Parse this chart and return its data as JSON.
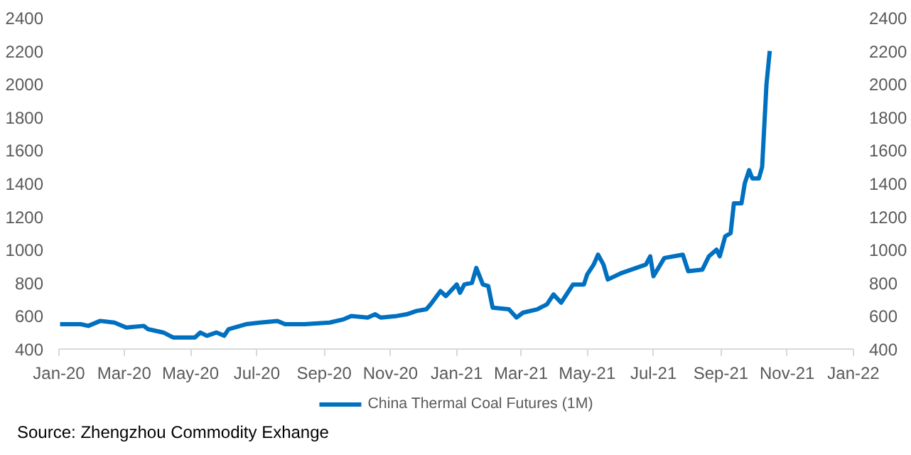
{
  "chart_data": {
    "type": "line",
    "x": [
      "2020-01-02",
      "2020-01-21",
      "2020-01-28",
      "2020-02-08",
      "2020-02-21",
      "2020-03-03",
      "2020-03-19",
      "2020-03-23",
      "2020-04-06",
      "2020-04-15",
      "2020-05-05",
      "2020-05-10",
      "2020-05-16",
      "2020-05-25",
      "2020-06-01",
      "2020-06-05",
      "2020-06-21",
      "2020-07-04",
      "2020-07-20",
      "2020-07-27",
      "2020-08-14",
      "2020-09-06",
      "2020-09-19",
      "2020-09-26",
      "2020-10-11",
      "2020-10-18",
      "2020-10-23",
      "2020-11-07",
      "2020-11-16",
      "2020-11-25",
      "2020-12-04",
      "2020-12-08",
      "2020-12-17",
      "2020-12-22",
      "2021-01-01",
      "2021-01-04",
      "2021-01-08",
      "2021-01-15",
      "2021-01-19",
      "2021-01-25",
      "2021-01-30",
      "2021-02-03",
      "2021-02-18",
      "2021-02-25",
      "2021-03-03",
      "2021-03-16",
      "2021-03-25",
      "2021-03-31",
      "2021-04-07",
      "2021-04-18",
      "2021-04-28",
      "2021-05-01",
      "2021-05-07",
      "2021-05-11",
      "2021-05-16",
      "2021-05-20",
      "2021-06-02",
      "2021-06-24",
      "2021-06-28",
      "2021-07-01",
      "2021-07-11",
      "2021-07-28",
      "2021-08-02",
      "2021-08-15",
      "2021-08-21",
      "2021-08-28",
      "2021-08-31",
      "2021-09-05",
      "2021-09-10",
      "2021-09-13",
      "2021-09-20",
      "2021-09-23",
      "2021-09-27",
      "2021-09-30",
      "2021-10-06",
      "2021-10-09",
      "2021-10-13",
      "2021-10-16"
    ],
    "series": [
      {
        "name": "China Thermal Coal Futures (1M)",
        "color": "#0070c0",
        "values": [
          550,
          550,
          540,
          570,
          560,
          530,
          540,
          520,
          500,
          470,
          470,
          500,
          480,
          500,
          480,
          520,
          550,
          560,
          570,
          550,
          550,
          560,
          580,
          600,
          590,
          610,
          590,
          600,
          610,
          630,
          640,
          670,
          750,
          720,
          790,
          740,
          790,
          800,
          890,
          790,
          780,
          650,
          640,
          590,
          620,
          640,
          670,
          730,
          680,
          790,
          790,
          850,
          910,
          970,
          910,
          820,
          860,
          910,
          960,
          840,
          950,
          970,
          870,
          880,
          960,
          1000,
          960,
          1080,
          1100,
          1280,
          1280,
          1400,
          1480,
          1430,
          1430,
          1500,
          2000,
          2200
        ]
      }
    ],
    "xlim": [
      "2020-01-01",
      "2022-01-01"
    ],
    "xticks": [
      {
        "value": "2020-01-01",
        "label": "Jan-20"
      },
      {
        "value": "2020-03-01",
        "label": "Mar-20"
      },
      {
        "value": "2020-05-01",
        "label": "May-20"
      },
      {
        "value": "2020-07-01",
        "label": "Jul-20"
      },
      {
        "value": "2020-09-01",
        "label": "Sep-20"
      },
      {
        "value": "2020-11-01",
        "label": "Nov-20"
      },
      {
        "value": "2021-01-01",
        "label": "Jan-21"
      },
      {
        "value": "2021-03-01",
        "label": "Mar-21"
      },
      {
        "value": "2021-05-01",
        "label": "May-21"
      },
      {
        "value": "2021-07-01",
        "label": "Jul-21"
      },
      {
        "value": "2021-09-01",
        "label": "Sep-21"
      },
      {
        "value": "2021-11-01",
        "label": "Nov-21"
      },
      {
        "value": "2022-01-01",
        "label": "Jan-22"
      }
    ],
    "ylim": [
      400,
      2400
    ],
    "yticks": [
      400,
      600,
      800,
      1000,
      1200,
      1400,
      1600,
      1800,
      2000,
      2200,
      2400
    ],
    "y2lim": [
      400,
      2400
    ],
    "y2ticks": [
      400,
      600,
      800,
      1000,
      1200,
      1400,
      1600,
      1800,
      2000,
      2200,
      2400
    ],
    "legend": "bottom",
    "grid": false,
    "line_style": "solid",
    "marker": "none",
    "annotations": [
      "Source: Zhengzhou Commodity Exhange"
    ]
  }
}
